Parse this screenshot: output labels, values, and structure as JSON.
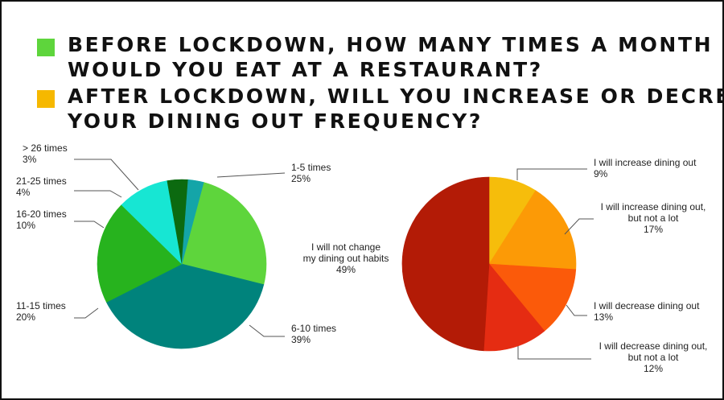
{
  "legend": [
    {
      "line1": "BEFORE LOCKDOWN, HOW MANY TIMES A MONTH",
      "line2": "WOULD YOU EAT AT A RESTAURANT?",
      "color": "#5ed53c"
    },
    {
      "line1": "AFTER LOCKDOWN, WILL YOU INCREASE OR DECREASE",
      "line2": "YOUR DINING OUT FREQUENCY?",
      "color": "#f6b800"
    }
  ],
  "chart_data": [
    {
      "type": "pie",
      "title": "BEFORE LOCKDOWN, HOW MANY TIMES A MONTH WOULD YOU EAT AT A RESTAURANT?",
      "start_angle_deg": 15,
      "direction": "clockwise",
      "slices": [
        {
          "label": "1-5 times",
          "value": 25,
          "value_label": "25%",
          "color": "#5ed53c"
        },
        {
          "label": "6-10 times",
          "value": 39,
          "value_label": "39%",
          "color": "#00837c"
        },
        {
          "label": "11-15 times",
          "value": 20,
          "value_label": "20%",
          "color": "#27b31e"
        },
        {
          "label": "16-20 times",
          "value": 10,
          "value_label": "10%",
          "color": "#17e6d3"
        },
        {
          "label": "21-25 times",
          "value": 4,
          "value_label": "4%",
          "color": "#0c6a10"
        },
        {
          "label": "> 26 times",
          "value": 3,
          "value_label": "3%",
          "color": "#14a5a8"
        }
      ]
    },
    {
      "type": "pie",
      "title": "AFTER LOCKDOWN, WILL YOU INCREASE OR DECREASE YOUR DINING OUT FREQUENCY?",
      "start_angle_deg": 0,
      "direction": "clockwise",
      "slices": [
        {
          "label": "I will increase dining out",
          "value": 9,
          "value_label": "9%",
          "color": "#f6bd0b"
        },
        {
          "label": "I will increase dining out, but not a lot",
          "value": 17,
          "value_label": "17%",
          "color": "#fc9a06"
        },
        {
          "label": "I will decrease dining out",
          "value": 13,
          "value_label": "13%",
          "color": "#fb5a0a"
        },
        {
          "label": "I will decrease dining out, but not a lot",
          "value": 12,
          "value_label": "12%",
          "color": "#e52c12"
        },
        {
          "label": "I will not change my dining out habits",
          "value": 49,
          "value_label": "49%",
          "color": "#b31b06"
        }
      ]
    }
  ]
}
